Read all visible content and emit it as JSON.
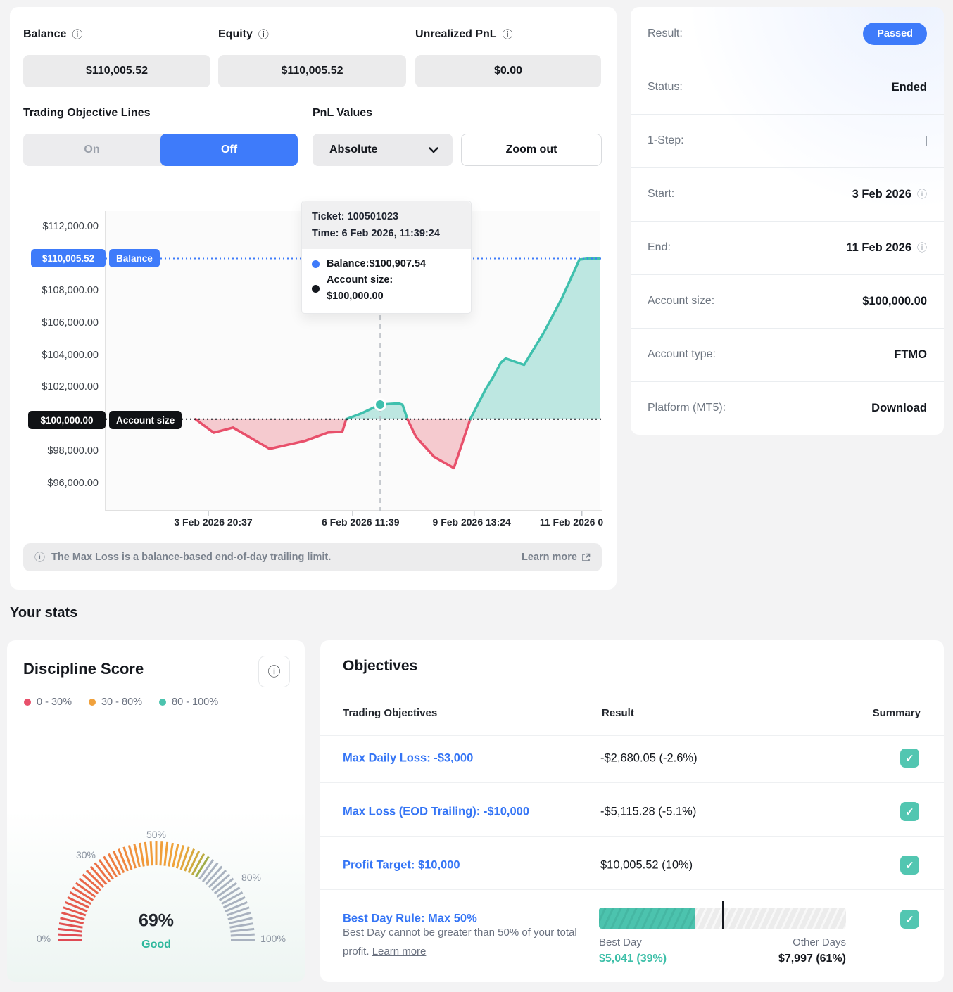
{
  "colors": {
    "accent_blue": "#3e7bfa",
    "link_blue": "#3575f5",
    "teal_line": "#3fc0ad",
    "teal_fill": "rgba(64,190,172,0.33)",
    "red_line": "#e8506b",
    "red_fill": "rgba(231,76,95,0.28)",
    "check_teal": "#52c6b1"
  },
  "chart_card": {
    "fields": [
      {
        "label": "Balance",
        "value": "$110,005.52"
      },
      {
        "label": "Equity",
        "value": "$110,005.52"
      },
      {
        "label": "Unrealized PnL",
        "value": "$0.00"
      }
    ],
    "controls": {
      "toggle_label": "Trading Objective Lines",
      "toggle_on": "On",
      "toggle_off": "Off",
      "pnl_label": "PnL Values",
      "pnl_value": "Absolute",
      "zoom_out": "Zoom out"
    },
    "tooltip": {
      "ticket": "Ticket: 100501023",
      "time": "Time: 6 Feb 2026, 11:39:24",
      "balance": "Balance:$100,907.54",
      "account_size_label": "Account size:",
      "account_size_value": "$100,000.00"
    },
    "note": {
      "text": "The Max Loss is a balance-based end-of-day trailing limit.",
      "link": "Learn more"
    }
  },
  "chart_data": {
    "type": "area",
    "title": "Account balance over time",
    "ylim": [
      95000,
      113000
    ],
    "grid": false,
    "y_ticks": [
      {
        "v": 112000,
        "label": "$112,000.00"
      },
      {
        "v": 108000,
        "label": "$108,000.00"
      },
      {
        "v": 106000,
        "label": "$106,000.00"
      },
      {
        "v": 104000,
        "label": "$104,000.00"
      },
      {
        "v": 102000,
        "label": "$102,000.00"
      },
      {
        "v": 98000,
        "label": "$98,000.00"
      },
      {
        "v": 96000,
        "label": "$96,000.00"
      }
    ],
    "x_ticks": [
      {
        "label": "3 Feb 2026 20:37",
        "f": 0.218,
        "f_tick": 0.208
      },
      {
        "label": "6 Feb 2026 11:39",
        "f": 0.516,
        "f_tick": 0.5
      },
      {
        "label": "9 Feb 2026 13:24",
        "f": 0.741,
        "f_tick": 0.746
      },
      {
        "label": "11 Feb 2026 0",
        "f": 0.943,
        "f_tick": 0.964
      }
    ],
    "baseline": {
      "name": "Account size",
      "value": 100000,
      "axis_label": "$100,000.00"
    },
    "balance_level": {
      "name": "Balance",
      "value": 110005.52,
      "axis_label": "$110,005.52"
    },
    "highlight": {
      "f": 0.5556,
      "value": 100907.54
    },
    "series": [
      {
        "name": "Balance",
        "points": [
          [
            0.182,
            100000
          ],
          [
            0.219,
            99150
          ],
          [
            0.258,
            99470
          ],
          [
            0.332,
            98150
          ],
          [
            0.403,
            98640
          ],
          [
            0.45,
            99160
          ],
          [
            0.479,
            99210
          ],
          [
            0.487,
            100000
          ],
          [
            0.517,
            100350
          ],
          [
            0.5556,
            100907.54
          ],
          [
            0.593,
            100980
          ],
          [
            0.601,
            100900
          ],
          [
            0.611,
            100000
          ],
          [
            0.628,
            98900
          ],
          [
            0.665,
            97650
          ],
          [
            0.705,
            96950
          ],
          [
            0.738,
            100000
          ],
          [
            0.769,
            101850
          ],
          [
            0.783,
            102550
          ],
          [
            0.8,
            103520
          ],
          [
            0.81,
            103780
          ],
          [
            0.847,
            103380
          ],
          [
            0.887,
            105400
          ],
          [
            0.924,
            107560
          ],
          [
            0.959,
            109940
          ],
          [
            0.977,
            110005.52
          ],
          [
            1.0,
            110005.52
          ]
        ]
      }
    ]
  },
  "details": {
    "rows": [
      {
        "label": "Result:",
        "value": "Passed"
      },
      {
        "label": "Status:",
        "value": "Ended"
      },
      {
        "label": "1-Step:",
        "value": ""
      },
      {
        "label": "Start:",
        "value": "3 Feb 2026"
      },
      {
        "label": "End:",
        "value": "11 Feb 2026"
      },
      {
        "label": "Account size:",
        "value": "$100,000.00"
      },
      {
        "label": "Account type:",
        "value": "FTMO"
      },
      {
        "label": "Platform (MT5):",
        "value": "Download"
      }
    ]
  },
  "your_stats_title": "Your stats",
  "discipline": {
    "title": "Discipline Score",
    "legend": [
      {
        "color": "#e8506b",
        "label": "0 - 30%"
      },
      {
        "color": "#f0a13c",
        "label": "30 - 80%"
      },
      {
        "color": "#4cc3ae",
        "label": "80 - 100%"
      }
    ],
    "gauge": {
      "type": "gauge",
      "value": 69,
      "value_label": "69%",
      "status": "Good",
      "scale_labels": [
        {
          "label": "0%",
          "x": 52,
          "y": 424
        },
        {
          "label": "30%",
          "x": 112,
          "y": 305
        },
        {
          "label": "50%",
          "x": 212,
          "y": 276
        },
        {
          "label": "80%",
          "x": 347,
          "y": 337
        },
        {
          "label": "100%",
          "x": 378,
          "y": 424
        }
      ]
    }
  },
  "objectives": {
    "title": "Objectives",
    "headers": [
      "Trading Objectives",
      "Result",
      "Summary"
    ],
    "rows": [
      {
        "name": "Max Daily Loss: -$3,000",
        "result": "-$2,680.05 (-2.6%)",
        "passed": true
      },
      {
        "name": "Max Loss (EOD Trailing): -$10,000",
        "result": "-$5,115.28 (-5.1%)",
        "passed": true
      },
      {
        "name": "Profit Target: $10,000",
        "result": "$10,005.52 (10%)",
        "passed": true
      },
      {
        "name": "Best Day Rule: Max 50%",
        "description": "Best Day cannot be greater than 50% of your total profit.",
        "desc_link": "Learn more",
        "passed": true,
        "bar": {
          "type": "bar",
          "best_pct": 39,
          "marker_pct": 50,
          "best_label": "Best Day",
          "best_value": "$5,041 (39%)",
          "other_label": "Other Days",
          "other_value": "$7,997 (61%)"
        }
      }
    ]
  }
}
